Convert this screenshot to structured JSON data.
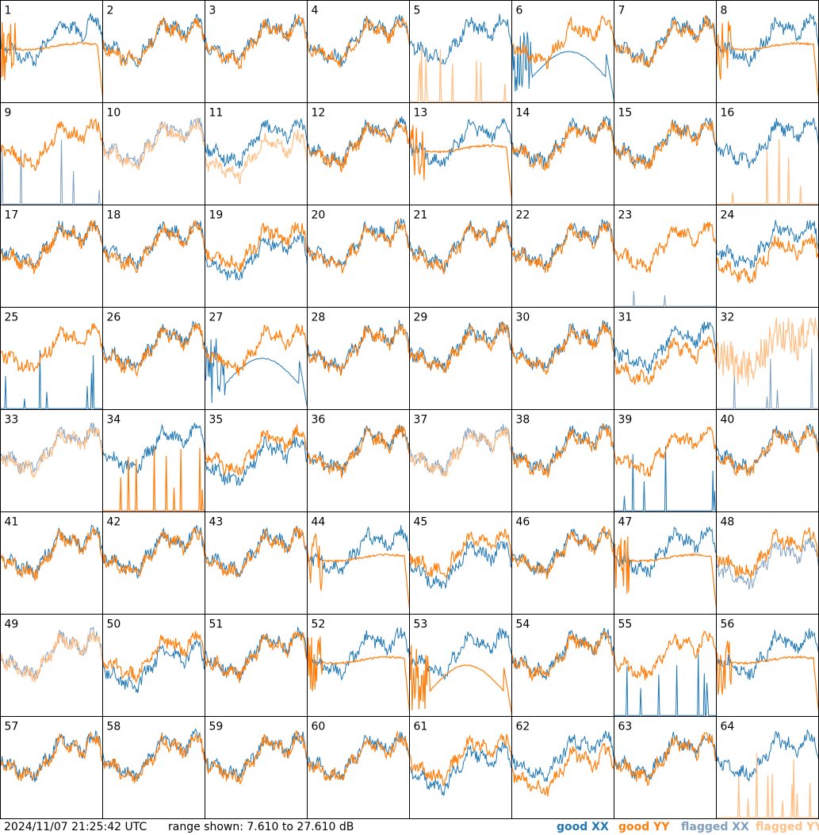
{
  "footer": {
    "timestamp": "2024/11/07 21:25:42 UTC",
    "range_text": "range shown: 7.610 to 27.610 dB",
    "legend": [
      {
        "label": "good XX",
        "color": "#1f77b4"
      },
      {
        "label": "good YY",
        "color": "#ff7f0e"
      },
      {
        "label": "flagged XX",
        "color": "#7f9fbf"
      },
      {
        "label": "flagged YY",
        "color": "#ffbf86"
      }
    ]
  },
  "chart_data": {
    "type": "line",
    "title": "",
    "ylim": [
      7.61,
      27.61
    ],
    "y_unit": "dB",
    "grid_layout": {
      "rows": 8,
      "cols": 8
    },
    "series_colors": {
      "good_xx": "#1f77b4",
      "good_yy": "#ff7f0e",
      "flagged_xx": "#7f9fbf",
      "flagged_yy": "#ffbf86"
    },
    "panels": [
      {
        "id": "1",
        "xx_style": "normal",
        "yy_style": "flat",
        "xx_flag": false,
        "yy_flag": false
      },
      {
        "id": "2",
        "xx_style": "normal",
        "yy_style": "normal",
        "xx_flag": false,
        "yy_flag": false
      },
      {
        "id": "3",
        "xx_style": "normal",
        "yy_style": "normal",
        "xx_flag": false,
        "yy_flag": false
      },
      {
        "id": "4",
        "xx_style": "normal",
        "yy_style": "normal",
        "xx_flag": false,
        "yy_flag": false
      },
      {
        "id": "5",
        "xx_style": "normal",
        "yy_style": "spikes",
        "xx_flag": false,
        "yy_flag": true
      },
      {
        "id": "6",
        "xx_style": "dead",
        "yy_style": "normal",
        "xx_flag": false,
        "yy_flag": false
      },
      {
        "id": "7",
        "xx_style": "normal",
        "yy_style": "normal",
        "xx_flag": false,
        "yy_flag": false
      },
      {
        "id": "8",
        "xx_style": "normal",
        "yy_style": "flat",
        "xx_flag": false,
        "yy_flag": false
      },
      {
        "id": "9",
        "xx_style": "spikes",
        "yy_style": "normal",
        "xx_flag": true,
        "yy_flag": false
      },
      {
        "id": "10",
        "xx_style": "normal",
        "yy_style": "normal",
        "xx_flag": true,
        "yy_flag": true
      },
      {
        "id": "11",
        "xx_style": "normal",
        "yy_style": "low",
        "xx_flag": false,
        "yy_flag": true
      },
      {
        "id": "12",
        "xx_style": "normal",
        "yy_style": "normal",
        "xx_flag": false,
        "yy_flag": false
      },
      {
        "id": "13",
        "xx_style": "normal",
        "yy_style": "flat",
        "xx_flag": false,
        "yy_flag": false
      },
      {
        "id": "14",
        "xx_style": "normal",
        "yy_style": "normal",
        "xx_flag": false,
        "yy_flag": false
      },
      {
        "id": "15",
        "xx_style": "normal",
        "yy_style": "normal",
        "xx_flag": false,
        "yy_flag": false
      },
      {
        "id": "16",
        "xx_style": "normal",
        "yy_style": "spikes",
        "xx_flag": false,
        "yy_flag": true
      },
      {
        "id": "17",
        "xx_style": "normal",
        "yy_style": "normal",
        "xx_flag": false,
        "yy_flag": false
      },
      {
        "id": "18",
        "xx_style": "normal",
        "yy_style": "normal",
        "xx_flag": false,
        "yy_flag": false
      },
      {
        "id": "19",
        "xx_style": "low",
        "yy_style": "normal",
        "xx_flag": false,
        "yy_flag": false
      },
      {
        "id": "20",
        "xx_style": "normal",
        "yy_style": "normal",
        "xx_flag": false,
        "yy_flag": false
      },
      {
        "id": "21",
        "xx_style": "normal",
        "yy_style": "normal",
        "xx_flag": false,
        "yy_flag": false
      },
      {
        "id": "22",
        "xx_style": "normal",
        "yy_style": "normal",
        "xx_flag": false,
        "yy_flag": false
      },
      {
        "id": "23",
        "xx_style": "spikes",
        "yy_style": "normal",
        "xx_flag": true,
        "yy_flag": false
      },
      {
        "id": "24",
        "xx_style": "normal",
        "yy_style": "low",
        "xx_flag": false,
        "yy_flag": false
      },
      {
        "id": "25",
        "xx_style": "spikes",
        "yy_style": "normal",
        "xx_flag": false,
        "yy_flag": false
      },
      {
        "id": "26",
        "xx_style": "normal",
        "yy_style": "normal",
        "xx_flag": false,
        "yy_flag": false
      },
      {
        "id": "27",
        "xx_style": "dead",
        "yy_style": "normal",
        "xx_flag": false,
        "yy_flag": false
      },
      {
        "id": "28",
        "xx_style": "normal",
        "yy_style": "normal",
        "xx_flag": false,
        "yy_flag": false
      },
      {
        "id": "29",
        "xx_style": "normal",
        "yy_style": "normal",
        "xx_flag": false,
        "yy_flag": false
      },
      {
        "id": "30",
        "xx_style": "normal",
        "yy_style": "normal",
        "xx_flag": false,
        "yy_flag": false
      },
      {
        "id": "31",
        "xx_style": "normal",
        "yy_style": "low",
        "xx_flag": false,
        "yy_flag": false
      },
      {
        "id": "32",
        "xx_style": "spikes",
        "yy_style": "noisy",
        "xx_flag": true,
        "yy_flag": true
      },
      {
        "id": "33",
        "xx_style": "normal",
        "yy_style": "normal",
        "xx_flag": true,
        "yy_flag": true
      },
      {
        "id": "34",
        "xx_style": "normal",
        "yy_style": "spikes",
        "xx_flag": false,
        "yy_flag": false
      },
      {
        "id": "35",
        "xx_style": "low",
        "yy_style": "normal",
        "xx_flag": false,
        "yy_flag": false
      },
      {
        "id": "36",
        "xx_style": "normal",
        "yy_style": "normal",
        "xx_flag": false,
        "yy_flag": false
      },
      {
        "id": "37",
        "xx_style": "normal",
        "yy_style": "normal",
        "xx_flag": true,
        "yy_flag": true
      },
      {
        "id": "38",
        "xx_style": "normal",
        "yy_style": "normal",
        "xx_flag": false,
        "yy_flag": false
      },
      {
        "id": "39",
        "xx_style": "spikes",
        "yy_style": "normal",
        "xx_flag": false,
        "yy_flag": false
      },
      {
        "id": "40",
        "xx_style": "normal",
        "yy_style": "normal",
        "xx_flag": false,
        "yy_flag": false
      },
      {
        "id": "41",
        "xx_style": "normal",
        "yy_style": "normal",
        "xx_flag": false,
        "yy_flag": false
      },
      {
        "id": "42",
        "xx_style": "normal",
        "yy_style": "normal",
        "xx_flag": false,
        "yy_flag": false
      },
      {
        "id": "43",
        "xx_style": "normal",
        "yy_style": "normal",
        "xx_flag": false,
        "yy_flag": false
      },
      {
        "id": "44",
        "xx_style": "normal",
        "yy_style": "flat",
        "xx_flag": false,
        "yy_flag": false
      },
      {
        "id": "45",
        "xx_style": "low",
        "yy_style": "normal",
        "xx_flag": false,
        "yy_flag": false
      },
      {
        "id": "46",
        "xx_style": "normal",
        "yy_style": "normal",
        "xx_flag": false,
        "yy_flag": false
      },
      {
        "id": "47",
        "xx_style": "normal",
        "yy_style": "flat",
        "xx_flag": false,
        "yy_flag": false
      },
      {
        "id": "48",
        "xx_style": "low",
        "yy_style": "normal",
        "xx_flag": true,
        "yy_flag": false
      },
      {
        "id": "49",
        "xx_style": "normal",
        "yy_style": "normal",
        "xx_flag": true,
        "yy_flag": true
      },
      {
        "id": "50",
        "xx_style": "low",
        "yy_style": "normal",
        "xx_flag": false,
        "yy_flag": false
      },
      {
        "id": "51",
        "xx_style": "normal",
        "yy_style": "normal",
        "xx_flag": false,
        "yy_flag": false
      },
      {
        "id": "52",
        "xx_style": "normal",
        "yy_style": "flat",
        "xx_flag": false,
        "yy_flag": false
      },
      {
        "id": "53",
        "xx_style": "normal",
        "yy_style": "dead",
        "xx_flag": false,
        "yy_flag": false
      },
      {
        "id": "54",
        "xx_style": "normal",
        "yy_style": "normal",
        "xx_flag": false,
        "yy_flag": false
      },
      {
        "id": "55",
        "xx_style": "spikes",
        "yy_style": "normal",
        "xx_flag": false,
        "yy_flag": false
      },
      {
        "id": "56",
        "xx_style": "normal",
        "yy_style": "flat",
        "xx_flag": false,
        "yy_flag": false
      },
      {
        "id": "57",
        "xx_style": "normal",
        "yy_style": "normal",
        "xx_flag": false,
        "yy_flag": false
      },
      {
        "id": "58",
        "xx_style": "normal",
        "yy_style": "normal",
        "xx_flag": false,
        "yy_flag": false
      },
      {
        "id": "59",
        "xx_style": "normal",
        "yy_style": "normal",
        "xx_flag": false,
        "yy_flag": false
      },
      {
        "id": "60",
        "xx_style": "normal",
        "yy_style": "normal",
        "xx_flag": false,
        "yy_flag": false
      },
      {
        "id": "61",
        "xx_style": "low",
        "yy_style": "normal",
        "xx_flag": false,
        "yy_flag": false
      },
      {
        "id": "62",
        "xx_style": "normal",
        "yy_style": "low",
        "xx_flag": false,
        "yy_flag": false
      },
      {
        "id": "63",
        "xx_style": "normal",
        "yy_style": "normal",
        "xx_flag": false,
        "yy_flag": false
      },
      {
        "id": "64",
        "xx_style": "normal",
        "yy_style": "spikes",
        "xx_flag": false,
        "yy_flag": true
      }
    ]
  }
}
